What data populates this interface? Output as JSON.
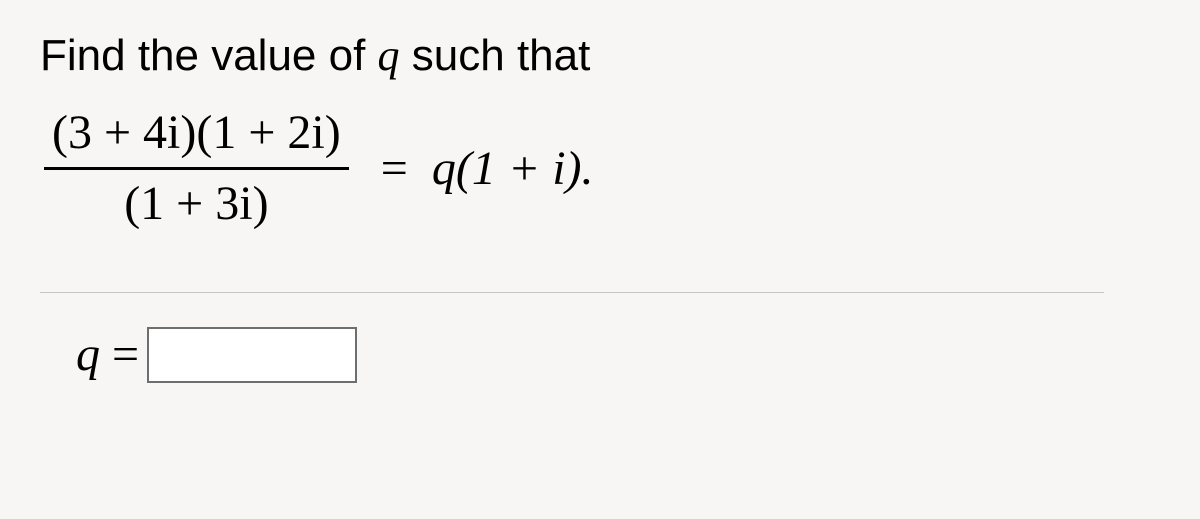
{
  "prompt_pre": "Find the value of ",
  "prompt_var": "q",
  "prompt_post": " such that",
  "equation": {
    "numerator": "(3 + 4i)(1 + 2i)",
    "denominator": "(1 + 3i)",
    "equals": "=",
    "rhs": "q(1 + i)."
  },
  "answer": {
    "var": "q",
    "equals": "=",
    "value": ""
  },
  "style": {
    "background": "#f8f6f5",
    "text_color": "#000000",
    "divider_color": "#c9c4c1",
    "input_border": "#6e6e6e",
    "prompt_fontsize": 44,
    "math_fontsize": 48,
    "input_width": 210,
    "input_height": 56
  }
}
